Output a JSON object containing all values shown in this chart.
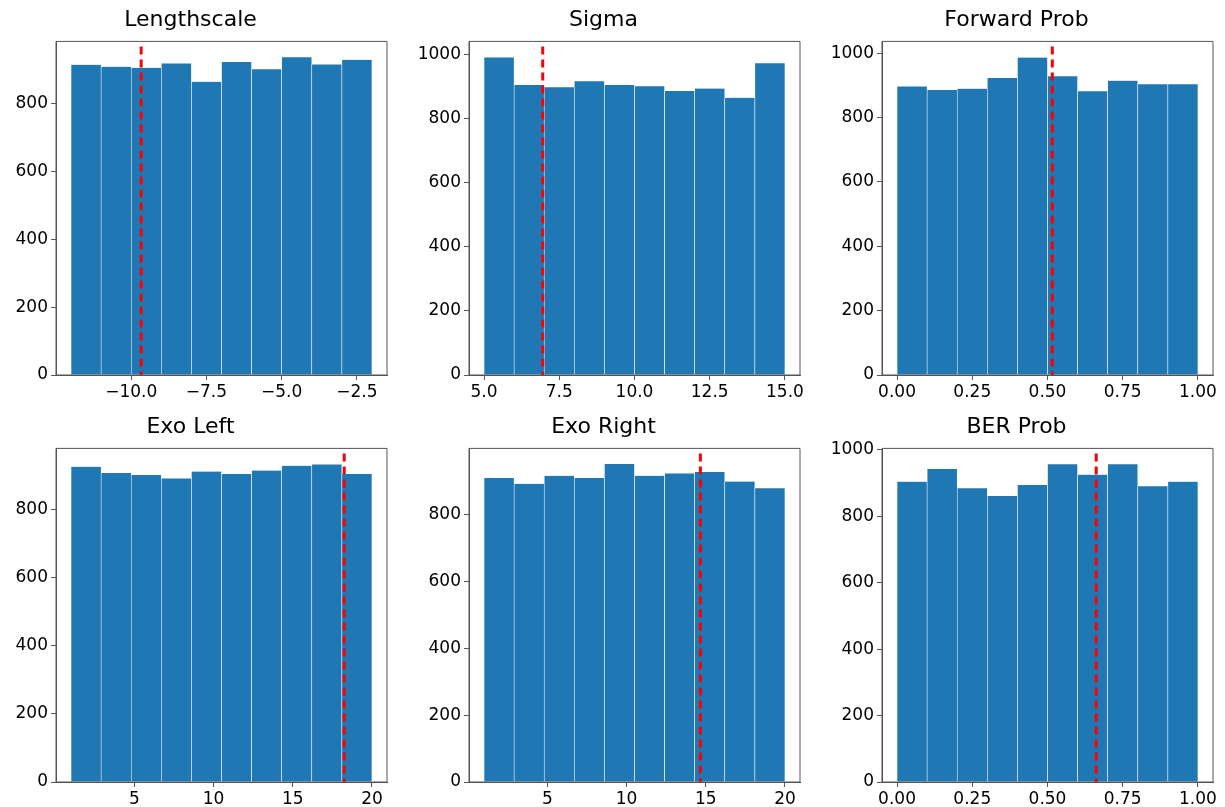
{
  "chart_data": [
    {
      "type": "histogram",
      "title": "Lengthscale",
      "bins": [
        -12,
        -11,
        -10,
        -9,
        -8,
        -7,
        -6,
        -5,
        -4,
        -3,
        -2
      ],
      "values": [
        915,
        909,
        906,
        919,
        865,
        923,
        902,
        937,
        916,
        930
      ],
      "color": "#1f77b4",
      "xlim": [
        -12.5,
        -1.5
      ],
      "xticks": [
        {
          "value": -10,
          "label": "−10.0"
        },
        {
          "value": -7.5,
          "label": "−7.5"
        },
        {
          "value": -5,
          "label": "−5.0"
        },
        {
          "value": -2.5,
          "label": "−2.5"
        }
      ],
      "ylim": [
        0,
        984
      ],
      "yticks": [
        0,
        200,
        400,
        600,
        800
      ],
      "ref_lines": [
        {
          "axis": "x",
          "value": -9.67,
          "color": "#ff0000",
          "line_style": "dashed"
        }
      ],
      "grid": false
    },
    {
      "type": "histogram",
      "title": "Sigma",
      "bins": [
        5,
        6,
        7,
        8,
        9,
        10,
        11,
        12,
        13,
        14,
        15
      ],
      "values": [
        990,
        904,
        897,
        916,
        904,
        900,
        885,
        893,
        864,
        972
      ],
      "color": "#1f77b4",
      "xlim": [
        4.5,
        15.5
      ],
      "xticks": [
        {
          "value": 5,
          "label": "5.0"
        },
        {
          "value": 7.5,
          "label": "7.5"
        },
        {
          "value": 10,
          "label": "10.0"
        },
        {
          "value": 12.5,
          "label": "12.5"
        },
        {
          "value": 15,
          "label": "15.0"
        }
      ],
      "ylim": [
        0,
        1040
      ],
      "yticks": [
        0,
        200,
        400,
        600,
        800,
        1000
      ],
      "ref_lines": [
        {
          "axis": "x",
          "value": 6.95,
          "color": "#ff0000",
          "line_style": "dashed"
        }
      ],
      "grid": false
    },
    {
      "type": "histogram",
      "title": "Forward Prob",
      "bins": [
        0,
        0.1,
        0.2,
        0.3,
        0.4,
        0.5,
        0.6,
        0.7,
        0.8,
        0.9,
        1
      ],
      "values": [
        897,
        886,
        890,
        923,
        987,
        929,
        882,
        915,
        904,
        904
      ],
      "color": "#1f77b4",
      "xlim": [
        -0.05,
        1.05
      ],
      "xticks": [
        {
          "value": 0,
          "label": "0.00"
        },
        {
          "value": 0.25,
          "label": "0.25"
        },
        {
          "value": 0.5,
          "label": "0.50"
        },
        {
          "value": 0.75,
          "label": "0.75"
        },
        {
          "value": 1,
          "label": "1.00"
        }
      ],
      "ylim": [
        0,
        1037
      ],
      "yticks": [
        0,
        200,
        400,
        600,
        800,
        1000
      ],
      "ref_lines": [
        {
          "axis": "x",
          "value": 0.516,
          "color": "#ff0000",
          "line_style": "dashed"
        }
      ],
      "grid": false
    },
    {
      "type": "histogram",
      "title": "Exo Left",
      "bins": [
        1,
        2.9,
        4.8,
        6.7,
        8.6,
        10.5,
        12.4,
        14.3,
        16.2,
        18.1,
        20
      ],
      "values": [
        924,
        906,
        900,
        890,
        910,
        903,
        913,
        927,
        931,
        903
      ],
      "color": "#1f77b4",
      "xlim": [
        0.05,
        20.95
      ],
      "xticks": [
        5,
        10,
        15,
        20
      ],
      "ylim": [
        0,
        978
      ],
      "yticks": [
        0,
        200,
        400,
        600,
        800
      ],
      "ref_lines": [
        {
          "axis": "x",
          "value": 18.25,
          "color": "#ff0000",
          "line_style": "dashed"
        }
      ],
      "grid": false
    },
    {
      "type": "histogram",
      "title": "Exo Right",
      "bins": [
        1,
        2.9,
        4.8,
        6.7,
        8.6,
        10.5,
        12.4,
        14.3,
        16.2,
        18.1,
        20
      ],
      "values": [
        910,
        893,
        917,
        910,
        952,
        917,
        924,
        928,
        900,
        880
      ],
      "color": "#1f77b4",
      "xlim": [
        0.05,
        20.95
      ],
      "xticks": [
        5,
        10,
        15,
        20
      ],
      "ylim": [
        0,
        999
      ],
      "yticks": [
        0,
        200,
        400,
        600,
        800
      ],
      "ref_lines": [
        {
          "axis": "x",
          "value": 14.66,
          "color": "#ff0000",
          "line_style": "dashed"
        }
      ],
      "grid": false
    },
    {
      "type": "histogram",
      "title": "BER Prob",
      "bins": [
        0,
        0.1,
        0.2,
        0.3,
        0.4,
        0.5,
        0.6,
        0.7,
        0.8,
        0.9,
        1
      ],
      "values": [
        904,
        942,
        884,
        861,
        894,
        956,
        925,
        956,
        890,
        904
      ],
      "color": "#1f77b4",
      "xlim": [
        -0.05,
        1.05
      ],
      "xticks": [
        {
          "value": 0,
          "label": "0.00"
        },
        {
          "value": 0.25,
          "label": "0.25"
        },
        {
          "value": 0.5,
          "label": "0.50"
        },
        {
          "value": 0.75,
          "label": "0.75"
        },
        {
          "value": 1,
          "label": "1.00"
        }
      ],
      "ylim": [
        0,
        1004
      ],
      "yticks": [
        0,
        200,
        400,
        600,
        800,
        1000
      ],
      "ref_lines": [
        {
          "axis": "x",
          "value": 0.662,
          "color": "#ff0000",
          "line_style": "dashed"
        }
      ],
      "grid": false
    }
  ]
}
